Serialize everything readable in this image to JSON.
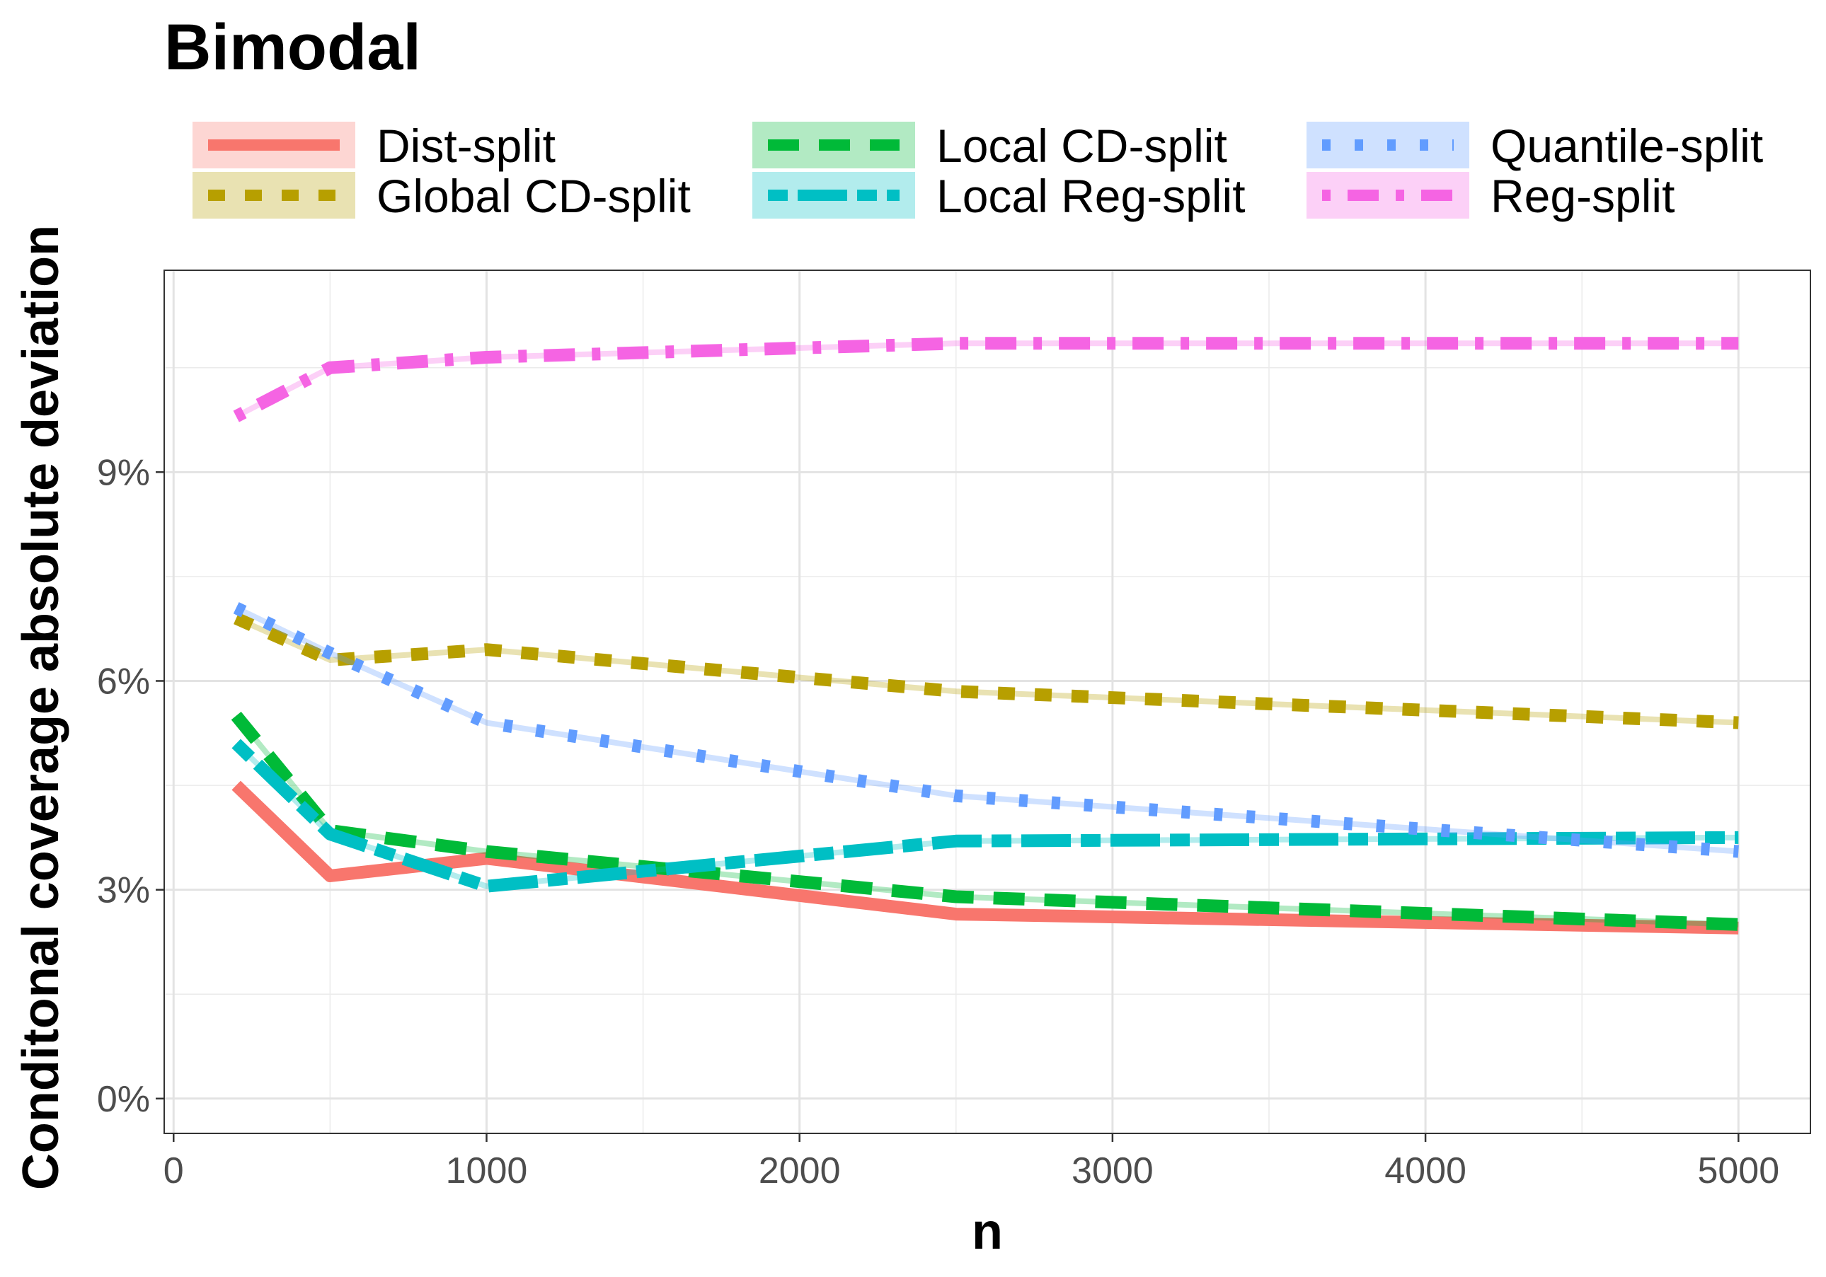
{
  "chart_data": {
    "type": "line",
    "title": "Bimodal",
    "xlabel": "n",
    "ylabel": "Conditonal coverage absolute deviation",
    "x": [
      200,
      500,
      1000,
      2500,
      5000
    ],
    "xlim": [
      -30,
      5230
    ],
    "ylim": [
      -0.5,
      11.9
    ],
    "x_ticks": [
      0,
      1000,
      2000,
      3000,
      4000,
      5000
    ],
    "x_tick_labels": [
      "0",
      "1000",
      "2000",
      "3000",
      "4000",
      "5000"
    ],
    "y_ticks": [
      0,
      3,
      6,
      9
    ],
    "y_tick_labels": [
      "0%",
      "3%",
      "6%",
      "9%"
    ],
    "grid": true,
    "legend_position": "top",
    "series": [
      {
        "name": "Dist-split",
        "values": [
          4.5,
          3.2,
          3.45,
          2.65,
          2.45
        ],
        "color": "#F8766D",
        "dash": "solid"
      },
      {
        "name": "Global CD-split",
        "values": [
          6.9,
          6.3,
          6.45,
          5.85,
          5.4
        ],
        "color": "#B79F00",
        "dash": "dashed"
      },
      {
        "name": "Local CD-split",
        "values": [
          5.5,
          3.85,
          3.55,
          2.9,
          2.5
        ],
        "color": "#00BA38",
        "dash": "longdash"
      },
      {
        "name": "Local Reg-split",
        "values": [
          5.1,
          3.8,
          3.05,
          3.7,
          3.75
        ],
        "color": "#00BFC4",
        "dash": "twodash"
      },
      {
        "name": "Quantile-split",
        "values": [
          7.05,
          6.4,
          5.4,
          4.35,
          3.55
        ],
        "color": "#619CFF",
        "dash": "dotted"
      },
      {
        "name": "Reg-split",
        "values": [
          9.8,
          10.5,
          10.65,
          10.85,
          10.85
        ],
        "color": "#F564E3",
        "dash": "dotdash"
      }
    ]
  }
}
